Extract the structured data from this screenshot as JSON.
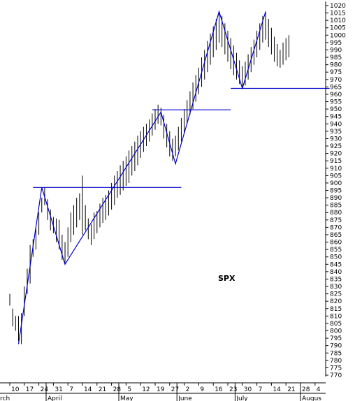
{
  "chart_data": {
    "type": "bar",
    "subtype": "ohlc-price-bars",
    "label": "SPX",
    "ylim": [
      770,
      1020
    ],
    "y_ticks": [
      770,
      775,
      780,
      785,
      790,
      795,
      800,
      805,
      810,
      815,
      820,
      825,
      830,
      835,
      840,
      845,
      850,
      855,
      860,
      865,
      870,
      875,
      880,
      885,
      890,
      895,
      900,
      905,
      910,
      915,
      920,
      925,
      930,
      935,
      940,
      945,
      950,
      955,
      960,
      965,
      970,
      975,
      980,
      985,
      990,
      995,
      1000,
      1005,
      1010,
      1015,
      1020
    ],
    "y_tick_labels": [
      "770",
      "775",
      "780",
      "785",
      "790",
      "795",
      "800",
      "805",
      "810",
      "815",
      "820",
      "825",
      "830",
      "835",
      "840",
      "845",
      "850",
      "855",
      "860",
      "865",
      "870",
      "875",
      "880",
      "885",
      "890",
      "895",
      "900",
      "905",
      "910",
      "915",
      "920",
      "925",
      "930",
      "935",
      "940",
      "945",
      "950",
      "955",
      "960",
      "965",
      "970",
      "975",
      "980",
      "985",
      "990",
      "995",
      "1000",
      "1005",
      "1010",
      "1015",
      "1020"
    ],
    "y_axis_position": "right",
    "grid": false,
    "x_day_ticks": [
      "10",
      "17",
      "24",
      "31",
      "7",
      "14",
      "21",
      "28",
      "5",
      "12",
      "19",
      "27",
      "2",
      "9",
      "16",
      "23",
      "30",
      "7",
      "14",
      "21",
      "28",
      "4"
    ],
    "x_month_labels": [
      "rch",
      "April",
      "May",
      "June",
      "July",
      "Augus"
    ],
    "price_bars": [
      [
        0,
        817,
        825
      ],
      [
        0.2,
        803,
        815
      ],
      [
        0.4,
        800,
        810
      ],
      [
        0.6,
        793,
        810
      ],
      [
        0.8,
        791,
        812
      ],
      [
        1,
        810,
        830
      ],
      [
        1.2,
        825,
        842
      ],
      [
        1.4,
        832,
        858
      ],
      [
        1.6,
        850,
        862
      ],
      [
        1.8,
        855,
        870
      ],
      [
        2,
        865,
        880
      ],
      [
        2.2,
        880,
        890
      ],
      [
        2.4,
        885,
        897
      ],
      [
        2.6,
        875,
        889
      ],
      [
        2.8,
        868,
        882
      ],
      [
        3,
        866,
        877
      ],
      [
        3.2,
        860,
        876
      ],
      [
        3.4,
        855,
        875
      ],
      [
        3.6,
        848,
        865
      ],
      [
        3.8,
        845,
        860
      ],
      [
        4,
        850,
        870
      ],
      [
        4.2,
        860,
        880
      ],
      [
        4.4,
        865,
        885
      ],
      [
        4.6,
        870,
        890
      ],
      [
        4.8,
        875,
        893
      ],
      [
        5,
        865,
        905
      ],
      [
        5.2,
        868,
        885
      ],
      [
        5.4,
        862,
        876
      ],
      [
        5.6,
        858,
        872
      ],
      [
        5.8,
        862,
        880
      ],
      [
        6,
        866,
        881
      ],
      [
        6.2,
        870,
        886
      ],
      [
        6.4,
        873,
        890
      ],
      [
        6.6,
        875,
        892
      ],
      [
        6.8,
        878,
        895
      ],
      [
        7,
        882,
        900
      ],
      [
        7.2,
        885,
        905
      ],
      [
        7.4,
        890,
        908
      ],
      [
        7.6,
        892,
        912
      ],
      [
        7.8,
        895,
        915
      ],
      [
        8,
        898,
        918
      ],
      [
        8.2,
        900,
        922
      ],
      [
        8.4,
        905,
        925
      ],
      [
        8.6,
        908,
        928
      ],
      [
        8.8,
        912,
        932
      ],
      [
        9,
        917,
        935
      ],
      [
        9.2,
        921,
        938
      ],
      [
        9.4,
        925,
        940
      ],
      [
        9.6,
        928,
        943
      ],
      [
        9.8,
        932,
        947
      ],
      [
        10,
        936,
        950
      ],
      [
        10.2,
        940,
        953
      ],
      [
        10.4,
        939,
        951
      ],
      [
        10.6,
        930,
        946
      ],
      [
        10.8,
        924,
        940
      ],
      [
        11,
        918,
        935
      ],
      [
        11.2,
        915,
        930
      ],
      [
        11.4,
        918,
        932
      ],
      [
        11.6,
        922,
        938
      ],
      [
        11.8,
        928,
        944
      ],
      [
        12,
        934,
        950
      ],
      [
        12.2,
        940,
        956
      ],
      [
        12.4,
        946,
        962
      ],
      [
        12.6,
        950,
        968
      ],
      [
        12.8,
        955,
        973
      ],
      [
        13,
        960,
        978
      ],
      [
        13.2,
        965,
        985
      ],
      [
        13.4,
        970,
        990
      ],
      [
        13.6,
        975,
        996
      ],
      [
        13.8,
        980,
        1001
      ],
      [
        14,
        985,
        1006
      ],
      [
        14.2,
        990,
        1011
      ],
      [
        14.4,
        995,
        1016
      ],
      [
        14.6,
        992,
        1013
      ],
      [
        14.8,
        987,
        1008
      ],
      [
        15,
        982,
        1003
      ],
      [
        15.2,
        977,
        998
      ],
      [
        15.4,
        973,
        993
      ],
      [
        15.6,
        970,
        988
      ],
      [
        15.8,
        967,
        983
      ],
      [
        16,
        964,
        979
      ],
      [
        16.2,
        966,
        982
      ],
      [
        16.4,
        970,
        987
      ],
      [
        16.6,
        975,
        992
      ],
      [
        16.8,
        980,
        997
      ],
      [
        17,
        985,
        1003
      ],
      [
        17.2,
        990,
        1008
      ],
      [
        17.4,
        995,
        1013
      ],
      [
        17.6,
        997,
        1016
      ],
      [
        17.8,
        992,
        1011
      ],
      [
        18,
        987,
        1005
      ],
      [
        18.2,
        982,
        999
      ],
      [
        18.4,
        979,
        994
      ],
      [
        18.6,
        978,
        990
      ],
      [
        18.8,
        980,
        995
      ],
      [
        19,
        983,
        998
      ],
      [
        19.2,
        985,
        1000
      ]
    ],
    "trend_lines": [
      {
        "points": [
          [
            0.6,
            791
          ],
          [
            2.2,
            897
          ],
          [
            3.8,
            845
          ],
          [
            10.4,
            948
          ],
          [
            11.4,
            913
          ],
          [
            14.4,
            1016
          ],
          [
            16,
            964
          ],
          [
            17.6,
            1016
          ]
        ]
      },
      {
        "points": [
          [
            1.6,
            897
          ],
          [
            11.8,
            897
          ]
        ]
      },
      {
        "points": [
          [
            9.8,
            949.5
          ],
          [
            15.2,
            949.5
          ]
        ]
      },
      {
        "points": [
          [
            15.2,
            964
          ],
          [
            22,
            964
          ]
        ]
      }
    ],
    "colors": {
      "bars": "#000000",
      "lines": "#0000cc",
      "axis": "#000000"
    }
  }
}
